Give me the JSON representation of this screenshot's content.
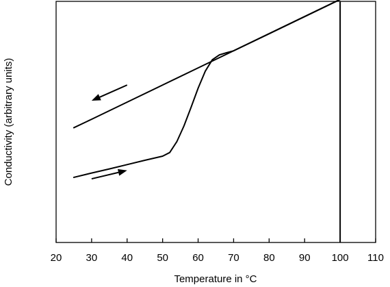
{
  "chart_data": {
    "type": "line",
    "title": "",
    "xlabel": "Temperature in °C",
    "ylabel": "Conductivity (arbitrary units)",
    "xlim": [
      20,
      110
    ],
    "ylim": [
      0,
      100
    ],
    "grid": false,
    "x_ticks": [
      "20",
      "30",
      "40",
      "50",
      "60",
      "70",
      "80",
      "90",
      "100",
      "110"
    ],
    "y_ticks": [],
    "series": [
      {
        "direction": "heating",
        "x": [
          25,
          30,
          35,
          40,
          45,
          50,
          52,
          54,
          56,
          58,
          60,
          62,
          64,
          66,
          68,
          70,
          80,
          90,
          100
        ],
        "y": [
          27.0,
          28.8,
          30.5,
          32.3,
          34.1,
          35.8,
          37.3,
          41.8,
          48.3,
          56.0,
          64.0,
          71.0,
          75.8,
          77.8,
          78.7,
          79.5,
          86.6,
          93.7,
          100.8
        ]
      },
      {
        "direction": "cooling",
        "x": [
          100,
          90,
          80,
          70,
          60,
          50,
          40,
          30,
          25
        ],
        "y": [
          100.8,
          93.7,
          86.6,
          79.5,
          72.4,
          65.3,
          58.2,
          51.1,
          47.6
        ]
      }
    ],
    "vertical_line": {
      "x": 100
    },
    "arrows": [
      {
        "series": "heating",
        "direction": "right",
        "x": [
          30,
          40
        ],
        "y": [
          26.4,
          29.9
        ]
      },
      {
        "series": "cooling",
        "direction": "left",
        "x": [
          40,
          30
        ],
        "y": [
          65.3,
          58.8
        ]
      }
    ],
    "colors": {
      "line": "#000000",
      "background": "#ffffff"
    }
  }
}
